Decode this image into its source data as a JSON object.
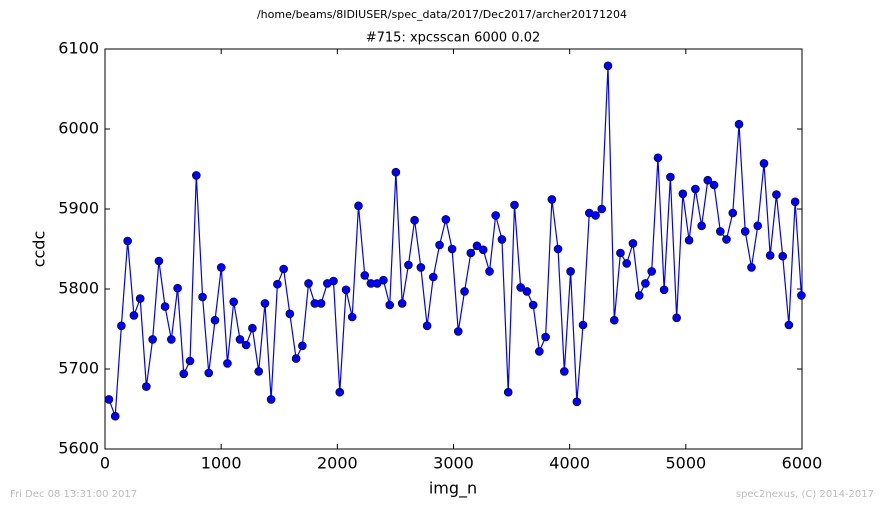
{
  "chart_data": {
    "type": "line",
    "suptitle": "/home/beams/8IDIUSER/spec_data/2017/Dec2017/archer20171204",
    "title": "#715: xpcsscan 6000 0.02",
    "xlabel": "img_n",
    "ylabel": "ccdc",
    "footer_left": "Fri Dec 08 13:31:00 2017",
    "footer_right": "spec2nexus, (C) 2014-2017",
    "xlim": [
      0,
      6000
    ],
    "xticks": [
      0,
      1000,
      2000,
      3000,
      4000,
      5000,
      6000
    ],
    "ylim": [
      5600,
      6100
    ],
    "yticks": [
      5600,
      5700,
      5800,
      5900,
      6000,
      6100
    ],
    "x": [
      34,
      88,
      141,
      195,
      249,
      303,
      356,
      410,
      464,
      517,
      571,
      625,
      678,
      732,
      786,
      840,
      893,
      947,
      1001,
      1054,
      1108,
      1162,
      1215,
      1269,
      1323,
      1377,
      1430,
      1484,
      1538,
      1591,
      1645,
      1699,
      1752,
      1806,
      1860,
      1914,
      1967,
      2021,
      2075,
      2128,
      2182,
      2236,
      2289,
      2343,
      2397,
      2451,
      2504,
      2558,
      2612,
      2665,
      2719,
      2773,
      2826,
      2880,
      2934,
      2988,
      3041,
      3095,
      3149,
      3202,
      3256,
      3310,
      3363,
      3417,
      3471,
      3525,
      3578,
      3632,
      3686,
      3739,
      3793,
      3847,
      3900,
      3954,
      4008,
      4062,
      4115,
      4169,
      4223,
      4276,
      4330,
      4384,
      4437,
      4491,
      4545,
      4599,
      4652,
      4706,
      4760,
      4813,
      4867,
      4921,
      4974,
      5028,
      5082,
      5136,
      5189,
      5243,
      5297,
      5350,
      5404,
      5458,
      5511,
      5565,
      5619,
      5673,
      5726,
      5780,
      5834,
      5887,
      5941,
      5995
    ],
    "series": [
      {
        "color": "#0000ff",
        "values": [
          5662,
          5641,
          5754,
          5860,
          5767,
          5788,
          5678,
          5737,
          5835,
          5778,
          5737,
          5801,
          5694,
          5710,
          5942,
          5790,
          5695,
          5761,
          5827,
          5707,
          5784,
          5737,
          5730,
          5751,
          5697,
          5782,
          5662,
          5806,
          5825,
          5769,
          5713,
          5729,
          5807,
          5782,
          5782,
          5807,
          5810,
          5671,
          5799,
          5765,
          5904,
          5817,
          5807,
          5807,
          5811,
          5780,
          5946,
          5782,
          5830,
          5886,
          5827,
          5754,
          5815,
          5855,
          5887,
          5850,
          5747,
          5797,
          5845,
          5854,
          5849,
          5822,
          5892,
          5862,
          5671,
          5905,
          5802,
          5797,
          5780,
          5722,
          5740,
          5912,
          5850,
          5697,
          5822,
          5659,
          5755,
          5895,
          5892,
          5900,
          6079,
          5761,
          5845,
          5832,
          5857,
          5792,
          5807,
          5822,
          5964,
          5799,
          5940,
          5764,
          5919,
          5861,
          5925,
          5879,
          5936,
          5930,
          5872,
          5862,
          5895,
          6006,
          5872,
          5827,
          5879,
          5957,
          5842,
          5918,
          5841,
          5755,
          5909,
          5792
        ]
      }
    ]
  }
}
